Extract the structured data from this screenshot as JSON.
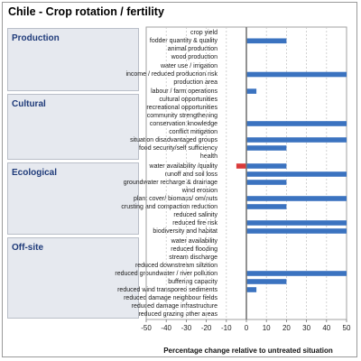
{
  "title": "Chile - Crop rotation / fertility",
  "chart_data": {
    "type": "bar",
    "orientation": "horizontal",
    "xlabel": "Percentage change relative to untreated situation",
    "xlim": [
      -50,
      50
    ],
    "xticks": [
      -50,
      -40,
      -30,
      -20,
      -10,
      0,
      10,
      20,
      30,
      40,
      50
    ],
    "colors": {
      "positive": "#3b73c0",
      "negative": "#d93a3a"
    },
    "groups": [
      {
        "name": "Production",
        "items": [
          {
            "label": "crop yield",
            "value": 0
          },
          {
            "label": "fodder quantity & quality",
            "value": 20
          },
          {
            "label": "animal production",
            "value": 0
          },
          {
            "label": "wood production",
            "value": 0
          },
          {
            "label": "water use / irrigation",
            "value": 0
          },
          {
            "label": "income / reduced producrion risk",
            "value": 50
          },
          {
            "label": "production area",
            "value": 0
          },
          {
            "label": "labour / farm operations",
            "value": 5
          }
        ]
      },
      {
        "name": "Cultural",
        "items": [
          {
            "label": "cultural opportunities",
            "value": 0
          },
          {
            "label": "recreational opportunities",
            "value": 0
          },
          {
            "label": "community strengthening",
            "value": 0
          },
          {
            "label": "conservation knowledge",
            "value": 50
          },
          {
            "label": "conflict mitigation",
            "value": 0
          },
          {
            "label": "situation disadvantaged groups",
            "value": 50
          },
          {
            "label": "food security/self sufficiency",
            "value": 20
          },
          {
            "label": "health",
            "value": 0
          }
        ]
      },
      {
        "name": "Ecological",
        "items": [
          {
            "label": "water availability /quality",
            "value": 20,
            "neg": -5
          },
          {
            "label": "runoff and soil loss",
            "value": 50
          },
          {
            "label": "groundwater recharge & drainage",
            "value": 20
          },
          {
            "label": "wind erosion",
            "value": 0
          },
          {
            "label": "plant cover/ biomass/ om/nuts",
            "value": 50
          },
          {
            "label": "crusting and compaction reduction",
            "value": 20
          },
          {
            "label": "reduced salinity",
            "value": 0
          },
          {
            "label": "reduced fire risk",
            "value": 50
          },
          {
            "label": "biodiversity and habitat",
            "value": 50
          }
        ]
      },
      {
        "name": "Off-site",
        "items": [
          {
            "label": "water availability",
            "value": 0
          },
          {
            "label": "reduced flooding",
            "value": 0
          },
          {
            "label": "stream discharge",
            "value": 0
          },
          {
            "label": "reduced downstream siltation",
            "value": 0
          },
          {
            "label": "reduced groundwater / river pollution",
            "value": 50
          },
          {
            "label": "buffering capacity",
            "value": 20
          },
          {
            "label": "reduced wind transpored sediments",
            "value": 5
          },
          {
            "label": "reduced damage neighbour fields",
            "value": 0
          },
          {
            "label": "reduced damage infrastructure",
            "value": 0
          },
          {
            "label": "reduced grazing other areas",
            "value": 0
          }
        ]
      }
    ]
  }
}
